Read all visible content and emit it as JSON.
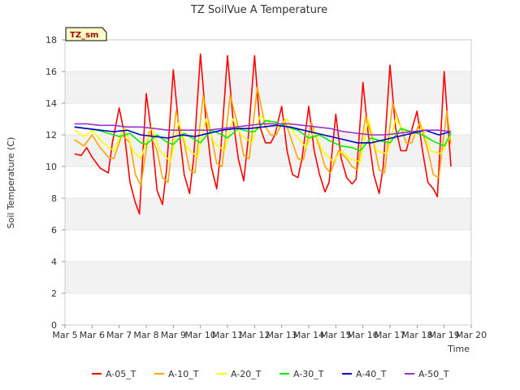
{
  "chart_data": {
    "type": "line",
    "title": "TZ SoilVue A Temperature",
    "xlabel": "Time",
    "ylabel": "Soil Temperature (C)",
    "ylim": [
      0,
      18
    ],
    "xlim": [
      5,
      20
    ],
    "y_ticks": [
      0,
      2,
      4,
      6,
      8,
      10,
      12,
      14,
      16,
      18
    ],
    "x_ticks": [
      {
        "v": 5,
        "label": "Mar 5"
      },
      {
        "v": 6,
        "label": "Mar 6"
      },
      {
        "v": 7,
        "label": "Mar 7"
      },
      {
        "v": 8,
        "label": "Mar 8"
      },
      {
        "v": 9,
        "label": "Mar 9"
      },
      {
        "v": 10,
        "label": "Mar 10"
      },
      {
        "v": 11,
        "label": "Mar 11"
      },
      {
        "v": 12,
        "label": "Mar 12"
      },
      {
        "v": 13,
        "label": "Mar 13"
      },
      {
        "v": 14,
        "label": "Mar 14"
      },
      {
        "v": 15,
        "label": "Mar 15"
      },
      {
        "v": 16,
        "label": "Mar 16"
      },
      {
        "v": 17,
        "label": "Mar 17"
      },
      {
        "v": 18,
        "label": "Mar 18"
      },
      {
        "v": 19,
        "label": "Mar 19"
      },
      {
        "v": 20,
        "label": "Mar 20"
      }
    ],
    "grid": "horizontal alternating bands",
    "legend_position": "bottom",
    "site_badge": "TZ_sm",
    "series": [
      {
        "name": "A-05_T",
        "color": "#ff0000",
        "x": [
          5.35,
          5.6,
          5.8,
          6.0,
          6.3,
          6.6,
          6.75,
          7.0,
          7.2,
          7.4,
          7.6,
          7.75,
          8.0,
          8.2,
          8.4,
          8.6,
          8.75,
          9.0,
          9.2,
          9.4,
          9.6,
          9.75,
          10.0,
          10.2,
          10.4,
          10.6,
          10.75,
          11.0,
          11.2,
          11.4,
          11.6,
          11.75,
          12.0,
          12.2,
          12.4,
          12.6,
          12.75,
          13.0,
          13.2,
          13.4,
          13.6,
          13.75,
          14.0,
          14.2,
          14.4,
          14.6,
          14.75,
          15.0,
          15.2,
          15.4,
          15.6,
          15.75,
          16.0,
          16.2,
          16.4,
          16.6,
          16.75,
          17.0,
          17.2,
          17.4,
          17.6,
          17.75,
          18.0,
          18.2,
          18.4,
          18.6,
          18.75,
          19.0,
          19.25
        ],
        "y": [
          10.8,
          10.7,
          11.2,
          10.6,
          9.9,
          9.6,
          11.5,
          13.7,
          12.0,
          9.0,
          7.7,
          7.0,
          14.6,
          12.0,
          8.5,
          7.6,
          9.8,
          16.1,
          12.5,
          9.5,
          8.3,
          10.5,
          17.1,
          13.0,
          10.0,
          8.6,
          11.0,
          17.0,
          13.0,
          10.5,
          9.1,
          11.5,
          17.0,
          12.5,
          11.5,
          11.5,
          12.0,
          13.8,
          11.0,
          9.5,
          9.3,
          10.5,
          13.8,
          11.0,
          9.5,
          8.4,
          9.0,
          13.3,
          10.5,
          9.3,
          8.9,
          9.2,
          15.3,
          12.0,
          9.5,
          8.3,
          10.0,
          16.4,
          12.5,
          11.0,
          11.0,
          12.0,
          13.5,
          11.0,
          9.0,
          8.6,
          8.1,
          16.0,
          10.0
        ]
      },
      {
        "name": "A-10_T",
        "color": "#ffa500",
        "x": [
          5.35,
          5.7,
          6.0,
          6.3,
          6.6,
          6.8,
          7.1,
          7.4,
          7.6,
          7.8,
          8.1,
          8.4,
          8.6,
          8.8,
          9.1,
          9.4,
          9.6,
          9.8,
          10.1,
          10.4,
          10.6,
          10.8,
          11.1,
          11.4,
          11.6,
          11.8,
          12.1,
          12.4,
          12.6,
          12.8,
          13.1,
          13.4,
          13.6,
          13.8,
          14.1,
          14.4,
          14.6,
          14.8,
          15.1,
          15.4,
          15.6,
          15.8,
          16.1,
          16.4,
          16.6,
          16.8,
          17.1,
          17.4,
          17.6,
          17.8,
          18.1,
          18.4,
          18.6,
          18.8,
          19.1,
          19.25
        ],
        "y": [
          11.7,
          11.3,
          12.0,
          11.2,
          10.6,
          10.5,
          12.0,
          11.5,
          9.5,
          8.8,
          12.2,
          11.0,
          9.3,
          9.0,
          13.5,
          11.5,
          9.8,
          9.6,
          14.5,
          12.0,
          10.2,
          10.0,
          14.5,
          12.5,
          10.7,
          10.5,
          15.0,
          12.5,
          12.0,
          12.0,
          13.0,
          11.5,
          10.5,
          10.4,
          12.8,
          11.2,
          10.0,
          9.6,
          11.0,
          10.5,
          10.0,
          9.8,
          13.2,
          11.5,
          9.8,
          9.6,
          14.0,
          12.5,
          11.5,
          11.5,
          12.8,
          11.0,
          9.5,
          9.3,
          13.5,
          11.4
        ]
      },
      {
        "name": "A-20_T",
        "color": "#ffff00",
        "x": [
          5.35,
          5.7,
          6.0,
          6.4,
          6.8,
          7.2,
          7.5,
          7.8,
          8.2,
          8.5,
          8.9,
          9.2,
          9.5,
          9.9,
          10.2,
          10.5,
          10.9,
          11.2,
          11.5,
          11.9,
          12.2,
          12.5,
          12.9,
          13.2,
          13.5,
          13.9,
          14.2,
          14.5,
          14.9,
          15.2,
          15.5,
          15.9,
          16.2,
          16.5,
          16.9,
          17.2,
          17.5,
          17.9,
          18.2,
          18.5,
          18.9,
          19.25
        ],
        "y": [
          12.3,
          11.9,
          12.3,
          11.5,
          11.0,
          12.5,
          11.0,
          10.5,
          12.5,
          11.0,
          10.3,
          12.8,
          11.2,
          10.6,
          13.0,
          11.5,
          11.0,
          13.0,
          12.0,
          11.5,
          13.2,
          12.8,
          12.5,
          13.0,
          12.0,
          11.2,
          12.3,
          11.0,
          10.3,
          11.0,
          10.5,
          10.3,
          13.0,
          11.0,
          10.8,
          13.0,
          12.3,
          12.0,
          12.5,
          11.0,
          10.8,
          12.0
        ]
      },
      {
        "name": "A-30_T",
        "color": "#00ee00",
        "x": [
          5.35,
          5.8,
          6.2,
          6.6,
          7.0,
          7.4,
          7.8,
          8.0,
          8.4,
          8.8,
          9.0,
          9.4,
          9.8,
          10.0,
          10.4,
          10.8,
          11.0,
          11.4,
          11.8,
          12.0,
          12.4,
          12.8,
          13.2,
          13.6,
          14.0,
          14.4,
          14.8,
          15.2,
          15.6,
          15.9,
          16.3,
          16.7,
          17.0,
          17.4,
          17.8,
          18.2,
          18.6,
          19.0,
          19.25
        ],
        "y": [
          12.5,
          12.4,
          12.3,
          12.1,
          11.9,
          12.1,
          11.5,
          11.4,
          12.0,
          11.5,
          11.4,
          12.1,
          11.7,
          11.5,
          12.3,
          12.0,
          11.8,
          12.4,
          12.2,
          12.2,
          12.9,
          12.8,
          12.5,
          12.3,
          11.8,
          12.0,
          11.6,
          11.3,
          11.2,
          11.0,
          11.8,
          11.6,
          11.5,
          12.4,
          12.2,
          12.0,
          11.6,
          11.3,
          12.1
        ]
      },
      {
        "name": "A-40_T",
        "color": "#0000cc",
        "x": [
          5.35,
          5.8,
          6.3,
          6.8,
          7.3,
          7.8,
          8.3,
          8.8,
          9.3,
          9.8,
          10.3,
          10.8,
          11.3,
          11.8,
          12.3,
          12.8,
          13.3,
          13.8,
          14.3,
          14.8,
          15.3,
          15.8,
          16.3,
          16.8,
          17.3,
          17.8,
          18.3,
          18.8,
          19.25
        ],
        "y": [
          12.5,
          12.4,
          12.3,
          12.2,
          12.3,
          12.0,
          11.9,
          11.8,
          12.0,
          11.9,
          12.1,
          12.3,
          12.4,
          12.4,
          12.5,
          12.6,
          12.5,
          12.3,
          12.1,
          11.9,
          11.7,
          11.5,
          11.5,
          11.7,
          11.9,
          12.1,
          12.3,
          12.0,
          12.2
        ]
      },
      {
        "name": "A-50_T",
        "color": "#9933cc",
        "x": [
          5.35,
          5.8,
          6.3,
          6.8,
          7.3,
          7.8,
          8.3,
          8.8,
          9.3,
          9.8,
          10.3,
          10.8,
          11.3,
          11.8,
          12.3,
          12.8,
          13.3,
          13.8,
          14.3,
          14.8,
          15.3,
          15.8,
          16.3,
          16.8,
          17.3,
          17.8,
          18.3,
          18.8,
          19.25
        ],
        "y": [
          12.7,
          12.7,
          12.6,
          12.6,
          12.5,
          12.5,
          12.4,
          12.3,
          12.3,
          12.3,
          12.3,
          12.4,
          12.5,
          12.6,
          12.7,
          12.7,
          12.7,
          12.6,
          12.5,
          12.4,
          12.2,
          12.1,
          12.0,
          12.0,
          12.1,
          12.2,
          12.3,
          12.3,
          12.2
        ]
      }
    ]
  }
}
